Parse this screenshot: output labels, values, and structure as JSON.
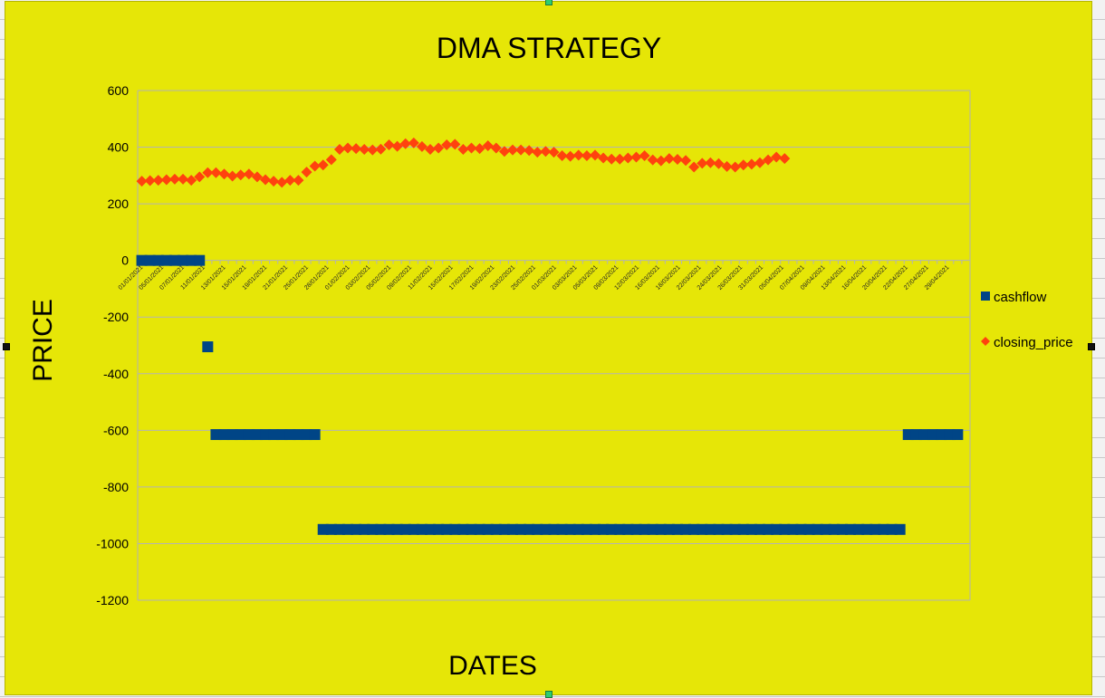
{
  "chart_data": {
    "type": "scatter",
    "title": "DMA STRATEGY",
    "xlabel": "DATES",
    "ylabel": "PRICE",
    "ylim": [
      -1200,
      600
    ],
    "yticks": [
      600,
      400,
      200,
      0,
      -200,
      -400,
      -600,
      -800,
      -1000,
      -1200
    ],
    "grid": "horizontal",
    "legend_position": "right",
    "x_tick_labels": [
      "01/01/2021",
      "05/01/2021",
      "07/01/2021",
      "11/01/2021",
      "13/01/2021",
      "15/01/2021",
      "19/01/2021",
      "21/01/2021",
      "25/01/2021",
      "28/01/2021",
      "01/02/2021",
      "03/02/2021",
      "05/02/2021",
      "09/02/2021",
      "11/02/2021",
      "15/02/2021",
      "17/02/2021",
      "19/02/2021",
      "23/02/2021",
      "25/02/2021",
      "01/03/2021",
      "03/03/2021",
      "05/03/2021",
      "09/03/2021",
      "12/03/2021",
      "16/03/2021",
      "18/03/2021",
      "22/03/2021",
      "24/03/2021",
      "26/03/2021",
      "31/03/2021",
      "05/04/2021",
      "07/04/2021",
      "09/04/2021",
      "13/04/2021",
      "16/04/2021",
      "20/04/2021",
      "22/04/2021",
      "27/04/2021",
      "29/04/2021"
    ],
    "series": [
      {
        "name": "cashflow",
        "color": "#004586",
        "marker": "square",
        "values": [
          0,
          0,
          0,
          0,
          0,
          0,
          0,
          0,
          -305,
          -615,
          -615,
          -615,
          -615,
          -615,
          -615,
          -615,
          -615,
          -615,
          -615,
          -615,
          -615,
          -615,
          -950,
          -950,
          -950,
          -950,
          -950,
          -950,
          -950,
          -950,
          -950,
          -950,
          -950,
          -950,
          -950,
          -950,
          -950,
          -950,
          -950,
          -950,
          -950,
          -950,
          -950,
          -950,
          -950,
          -950,
          -950,
          -950,
          -950,
          -950,
          -950,
          -950,
          -950,
          -950,
          -950,
          -950,
          -950,
          -950,
          -950,
          -950,
          -950,
          -950,
          -950,
          -950,
          -950,
          -950,
          -950,
          -950,
          -950,
          -950,
          -950,
          -950,
          -950,
          -950,
          -950,
          -950,
          -950,
          -950,
          -950,
          -950,
          -950,
          -950,
          -950,
          -950,
          -950,
          -950,
          -950,
          -950,
          -950,
          -950,
          -950,
          -950,
          -950,
          -615,
          -615,
          -615,
          -615,
          -615,
          -615,
          -615
        ]
      },
      {
        "name": "closing_price",
        "color": "#ff420e",
        "marker": "diamond",
        "values": [
          280,
          282,
          283,
          285,
          287,
          287,
          283,
          295,
          310,
          310,
          305,
          298,
          302,
          305,
          295,
          285,
          280,
          276,
          283,
          283,
          312,
          333,
          337,
          356,
          392,
          397,
          395,
          392,
          390,
          393,
          408,
          403,
          412,
          415,
          402,
          392,
          397,
          408,
          410,
          392,
          397,
          395,
          405,
          397,
          385,
          390,
          390,
          388,
          382,
          385,
          382,
          370,
          368,
          372,
          370,
          372,
          362,
          358,
          358,
          362,
          365,
          370,
          355,
          352,
          360,
          357,
          353,
          330,
          343,
          345,
          342,
          332,
          330,
          337,
          340,
          345,
          355,
          365,
          360
        ]
      }
    ]
  }
}
